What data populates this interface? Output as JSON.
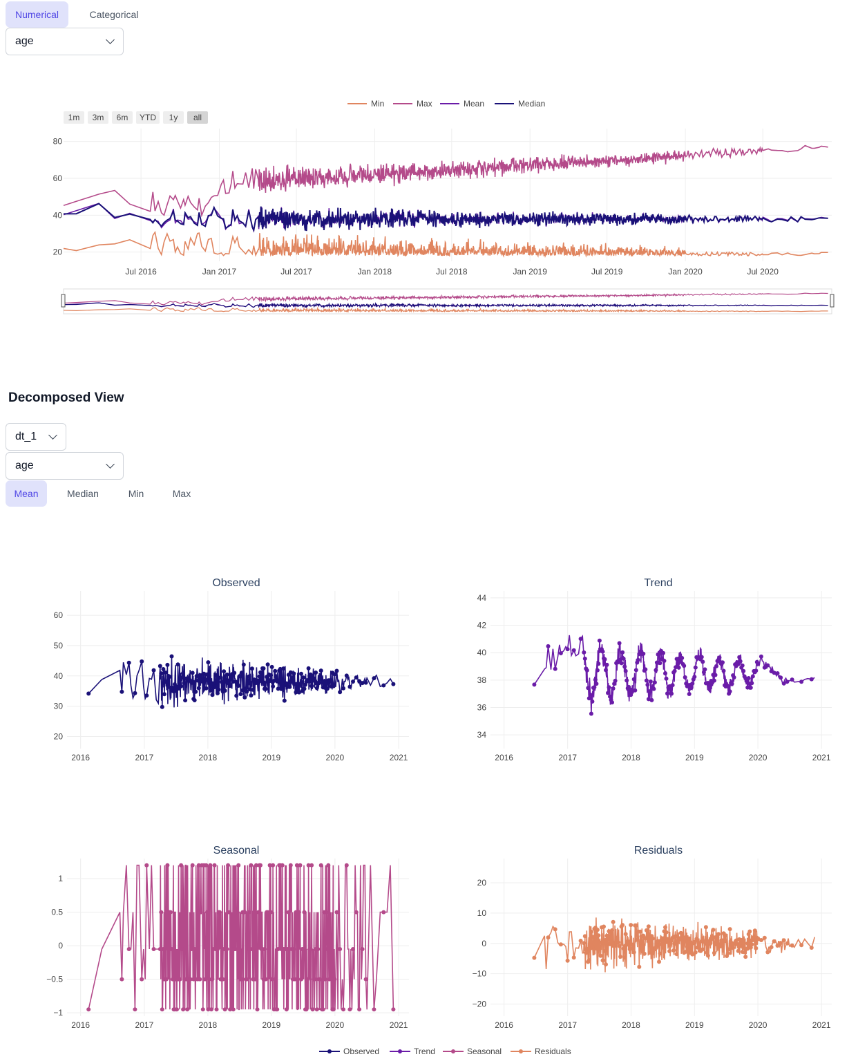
{
  "tabs": [
    {
      "label": "Numerical",
      "active": true
    },
    {
      "label": "Categorical",
      "active": false
    }
  ],
  "feature_select": {
    "value": "age"
  },
  "range_selector": [
    {
      "label": "1m",
      "active": false
    },
    {
      "label": "3m",
      "active": false
    },
    {
      "label": "6m",
      "active": false
    },
    {
      "label": "YTD",
      "active": false
    },
    {
      "label": "1y",
      "active": false
    },
    {
      "label": "all",
      "active": true
    }
  ],
  "decomposed": {
    "title": "Decomposed View",
    "dataset_select": {
      "value": "dt_1"
    },
    "feature_select": {
      "value": "age"
    },
    "stat_tabs": [
      {
        "label": "Mean",
        "active": true
      },
      {
        "label": "Median",
        "active": false
      },
      {
        "label": "Min",
        "active": false
      },
      {
        "label": "Max",
        "active": false
      }
    ]
  },
  "colors": {
    "min": "#e0855f",
    "max": "#b44a8a",
    "mean": "#6a1ca8",
    "median": "#1a1178",
    "observed": "#1a1178",
    "trend": "#6a1ca8",
    "seasonal": "#b44a8a",
    "residuals": "#e0855f",
    "tab_active_bg": "#e0e2fb",
    "tab_active_text": "#4f46e5"
  },
  "chart_data": [
    {
      "type": "line",
      "id": "stats",
      "legend": [
        "Min",
        "Max",
        "Mean",
        "Median"
      ],
      "legend_position": "top-center",
      "x_ticks": [
        "Jul 2016",
        "Jan 2017",
        "Jul 2017",
        "Jan 2018",
        "Jul 2018",
        "Jan 2019",
        "Jul 2019",
        "Jan 2020",
        "Jul 2020"
      ],
      "y_ticks": [
        20,
        40,
        60,
        80
      ],
      "xlim": [
        "2016-01-01",
        "2020-12-10"
      ],
      "ylim": [
        15,
        87
      ],
      "grid": true,
      "rangeslider": true,
      "series": [
        {
          "name": "Min",
          "key": "min",
          "approx_range": [
            17,
            45
          ],
          "late_level": 18
        },
        {
          "name": "Max",
          "key": "max",
          "approx_range": [
            30,
            85
          ],
          "late_level": 72
        },
        {
          "name": "Mean",
          "key": "mean",
          "approx_range": [
            20,
            60
          ],
          "late_level": 38
        },
        {
          "name": "Median",
          "key": "median",
          "approx_range": [
            20,
            60
          ],
          "late_level": 38
        }
      ]
    },
    {
      "type": "scatter",
      "id": "observed",
      "title": "Observed",
      "mode": "lines+markers",
      "x_ticks": [
        "2016",
        "2017",
        "2018",
        "2019",
        "2020",
        "2021"
      ],
      "y_ticks": [
        20,
        30,
        40,
        50,
        60
      ],
      "xlim": [
        "2015-10-15",
        "2021-03-01"
      ],
      "ylim": [
        16,
        68
      ],
      "approx_range": [
        18,
        66
      ],
      "center": 38
    },
    {
      "type": "scatter",
      "id": "trend",
      "title": "Trend",
      "mode": "lines+markers",
      "x_ticks": [
        "2016",
        "2017",
        "2018",
        "2019",
        "2020",
        "2021"
      ],
      "y_ticks": [
        34,
        36,
        38,
        40,
        42,
        44
      ],
      "xlim": [
        "2015-10-15",
        "2021-03-01"
      ],
      "ylim": [
        33,
        44.5
      ],
      "approx_range": [
        33.2,
        43.6
      ],
      "center": 38.5
    },
    {
      "type": "scatter",
      "id": "seasonal",
      "title": "Seasonal",
      "mode": "lines+markers",
      "x_ticks": [
        "2016",
        "2017",
        "2018",
        "2019",
        "2020",
        "2021"
      ],
      "y_ticks": [
        -1,
        -0.5,
        0,
        0.5,
        1
      ],
      "y_tick_labels": [
        "−1",
        "−0.5",
        "0",
        "0.5",
        "1"
      ],
      "xlim": [
        "2015-10-15",
        "2021-03-01"
      ],
      "ylim": [
        -1.05,
        1.3
      ],
      "levels": [
        -0.95,
        -0.5,
        -0.05,
        0.5,
        1.2
      ]
    },
    {
      "type": "scatter",
      "id": "residuals",
      "title": "Residuals",
      "mode": "lines+markers",
      "x_ticks": [
        "2016",
        "2017",
        "2018",
        "2019",
        "2020",
        "2021"
      ],
      "y_ticks": [
        -20,
        -10,
        0,
        10,
        20
      ],
      "y_tick_labels": [
        "−20",
        "−10",
        "0",
        "10",
        "20"
      ],
      "xlim": [
        "2015-10-15",
        "2021-03-01"
      ],
      "ylim": [
        -24,
        28
      ],
      "approx_range": [
        -22,
        26
      ],
      "center": 0
    }
  ],
  "bottom_legend": [
    "Observed",
    "Trend",
    "Seasonal",
    "Residuals"
  ]
}
